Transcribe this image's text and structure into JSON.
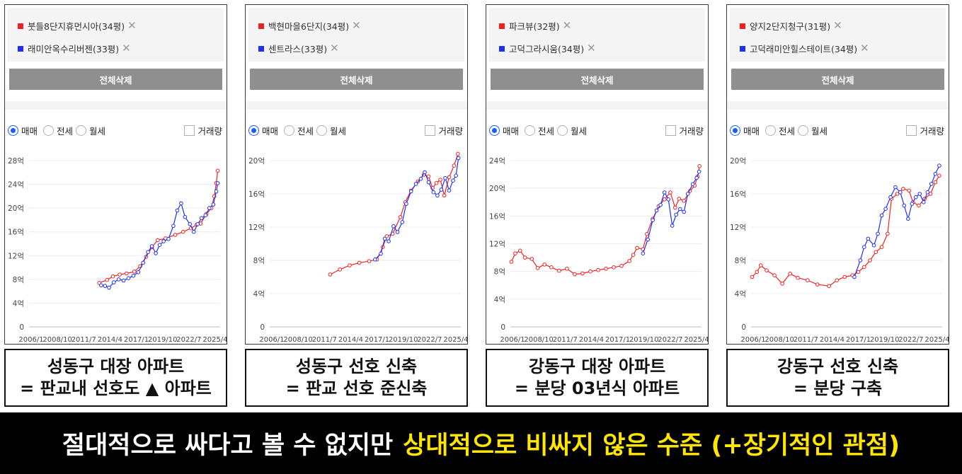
{
  "colors": {
    "red_series": "#f02020",
    "blue_series": "#2030f0",
    "accent_radio": "#1a5cff"
  },
  "controls": {
    "clear_all": "전체삭제",
    "trade": "매매",
    "jeonse": "전세",
    "monthly": "월세",
    "volume": "거래량"
  },
  "panels": [
    {
      "items": [
        {
          "label": "붓들8단지휴먼시아(34평)"
        },
        {
          "label": "래미안옥수리버젠(33평)"
        }
      ],
      "caption": {
        "line1": "성동구 대장 아파트",
        "line2": "= 판교내 선호도 ▲ 아파트"
      }
    },
    {
      "items": [
        {
          "label": "백현마을6단지(34평)"
        },
        {
          "label": "센트라스(33평)"
        }
      ],
      "caption": {
        "line1": "성동구 선호 신축",
        "line2": "= 판교 선호 준신축"
      }
    },
    {
      "items": [
        {
          "label": "파크뷰(32평)"
        },
        {
          "label": "고덕그라시움(34평)"
        }
      ],
      "caption": {
        "line1": "강동구 대장 아파트",
        "line2": "= 분당 03년식 아파트"
      }
    },
    {
      "items": [
        {
          "label": "양지2단지청구(31평)"
        },
        {
          "label": "고덕래미안힐스테이트(34평)"
        }
      ],
      "caption": {
        "line1": "강동구 선호 신축",
        "line2": "= 분당 구축"
      }
    }
  ],
  "banner": {
    "white": "절대적으로 싸다고 볼 수 없지만",
    "yellow": "상대적으로 비싸지 않은 수준 (+장기적인 관점)"
  },
  "chart_data": [
    {
      "type": "line",
      "x_ticks": [
        "2006/1",
        "2008/10",
        "2011/7",
        "2014/4",
        "2017/1",
        "2019/10",
        "2022/7",
        "2025/4"
      ],
      "xlim": [
        2006.0,
        2025.6
      ],
      "ylim": [
        0,
        28
      ],
      "y_tick_values": [
        0,
        4,
        8,
        12,
        16,
        20,
        24,
        28
      ],
      "y_tick_labels": [
        "0",
        "4억",
        "8억",
        "12억",
        "16억",
        "20억",
        "24억",
        "28억"
      ],
      "series": [
        {
          "color": "red",
          "points": [
            [
              2013.2,
              7.4
            ],
            [
              2014.0,
              7.9
            ],
            [
              2014.6,
              8.5
            ],
            [
              2015.3,
              8.8
            ],
            [
              2016.0,
              9.0
            ],
            [
              2016.8,
              9.3
            ],
            [
              2017.4,
              10.2
            ],
            [
              2018.0,
              11.8
            ],
            [
              2018.6,
              13.4
            ],
            [
              2019.2,
              14.6
            ],
            [
              2020.0,
              14.9
            ],
            [
              2021.0,
              15.5
            ],
            [
              2021.8,
              16.0
            ],
            [
              2022.6,
              16.6
            ],
            [
              2023.2,
              17.2
            ],
            [
              2023.6,
              17.4
            ],
            [
              2024.2,
              19.0
            ],
            [
              2024.7,
              20.0
            ],
            [
              2025.0,
              22.0
            ],
            [
              2025.2,
              24.2
            ],
            [
              2025.35,
              26.3
            ]
          ]
        },
        {
          "color": "blue",
          "points": [
            [
              2013.4,
              7.0
            ],
            [
              2013.8,
              6.9
            ],
            [
              2014.2,
              6.6
            ],
            [
              2014.7,
              7.5
            ],
            [
              2015.2,
              8.0
            ],
            [
              2015.7,
              7.8
            ],
            [
              2016.2,
              8.2
            ],
            [
              2016.7,
              8.6
            ],
            [
              2017.2,
              9.2
            ],
            [
              2017.7,
              10.8
            ],
            [
              2018.2,
              12.6
            ],
            [
              2018.6,
              13.6
            ],
            [
              2019.0,
              12.4
            ],
            [
              2019.4,
              13.8
            ],
            [
              2019.8,
              14.4
            ],
            [
              2020.3,
              14.8
            ],
            [
              2020.8,
              17.0
            ],
            [
              2021.2,
              19.6
            ],
            [
              2021.6,
              20.8
            ],
            [
              2022.0,
              18.5
            ],
            [
              2022.5,
              17.3
            ],
            [
              2022.9,
              16.0
            ],
            [
              2023.3,
              17.3
            ],
            [
              2023.7,
              18.3
            ],
            [
              2024.1,
              18.8
            ],
            [
              2024.5,
              20.0
            ],
            [
              2024.9,
              20.6
            ],
            [
              2025.2,
              22.8
            ],
            [
              2025.35,
              24.2
            ]
          ]
        }
      ]
    },
    {
      "type": "line",
      "x_ticks": [
        "2006/1",
        "2008/10",
        "2011/7",
        "2014/4",
        "2017/1",
        "2019/10",
        "2022/7",
        "2025/4"
      ],
      "xlim": [
        2006.0,
        2025.6
      ],
      "ylim": [
        0,
        20
      ],
      "y_tick_values": [
        0,
        4,
        8,
        12,
        16,
        20
      ],
      "y_tick_labels": [
        "0",
        "4억",
        "8억",
        "12억",
        "16억",
        "20억"
      ],
      "series": [
        {
          "color": "red",
          "points": [
            [
              2012.2,
              6.3
            ],
            [
              2013.2,
              6.9
            ],
            [
              2014.2,
              7.4
            ],
            [
              2015.2,
              7.7
            ],
            [
              2016.2,
              7.9
            ],
            [
              2017.0,
              8.1
            ],
            [
              2017.6,
              9.6
            ],
            [
              2018.0,
              10.9
            ],
            [
              2018.6,
              11.2
            ],
            [
              2019.4,
              13.2
            ],
            [
              2019.9,
              15.0
            ],
            [
              2020.5,
              16.4
            ],
            [
              2021.2,
              17.5
            ],
            [
              2021.8,
              18.3
            ],
            [
              2022.3,
              18.1
            ],
            [
              2022.7,
              16.7
            ],
            [
              2023.1,
              17.3
            ],
            [
              2023.5,
              17.7
            ],
            [
              2023.9,
              15.8
            ],
            [
              2024.4,
              18.0
            ],
            [
              2024.9,
              19.4
            ],
            [
              2025.3,
              20.8
            ]
          ]
        },
        {
          "color": "blue",
          "points": [
            [
              2016.8,
              8.1
            ],
            [
              2017.4,
              8.8
            ],
            [
              2017.8,
              10.6
            ],
            [
              2018.2,
              10.3
            ],
            [
              2018.7,
              12.1
            ],
            [
              2019.1,
              11.4
            ],
            [
              2019.6,
              12.6
            ],
            [
              2020.0,
              14.8
            ],
            [
              2020.5,
              16.3
            ],
            [
              2021.0,
              17.2
            ],
            [
              2021.5,
              17.8
            ],
            [
              2021.9,
              18.6
            ],
            [
              2022.3,
              17.4
            ],
            [
              2022.8,
              16.2
            ],
            [
              2023.2,
              15.8
            ],
            [
              2023.6,
              16.5
            ],
            [
              2024.0,
              17.9
            ],
            [
              2024.4,
              16.4
            ],
            [
              2024.8,
              17.6
            ],
            [
              2025.1,
              18.2
            ],
            [
              2025.35,
              20.3
            ]
          ]
        }
      ]
    },
    {
      "type": "line",
      "x_ticks": [
        "2006/1",
        "2008/10",
        "2011/7",
        "2014/4",
        "2017/1",
        "2019/10",
        "2022/7",
        "2025/4"
      ],
      "xlim": [
        2006.0,
        2025.6
      ],
      "ylim": [
        0,
        24
      ],
      "y_tick_values": [
        0,
        4,
        8,
        12,
        16,
        20,
        24
      ],
      "y_tick_labels": [
        "0",
        "4억",
        "8억",
        "12억",
        "16억",
        "20억",
        "24억"
      ],
      "series": [
        {
          "color": "red",
          "points": [
            [
              2006.1,
              9.4
            ],
            [
              2006.5,
              10.6
            ],
            [
              2007.0,
              11.0
            ],
            [
              2007.5,
              10.0
            ],
            [
              2008.2,
              9.8
            ],
            [
              2008.8,
              8.5
            ],
            [
              2009.5,
              9.0
            ],
            [
              2010.2,
              8.6
            ],
            [
              2011.0,
              8.1
            ],
            [
              2011.8,
              8.4
            ],
            [
              2012.6,
              7.6
            ],
            [
              2013.4,
              7.7
            ],
            [
              2014.2,
              8.0
            ],
            [
              2015.0,
              8.2
            ],
            [
              2015.8,
              8.4
            ],
            [
              2016.6,
              8.6
            ],
            [
              2017.4,
              8.8
            ],
            [
              2018.2,
              9.5
            ],
            [
              2018.6,
              10.4
            ],
            [
              2019.0,
              11.4
            ],
            [
              2019.6,
              11.2
            ],
            [
              2020.0,
              13.4
            ],
            [
              2020.6,
              15.6
            ],
            [
              2021.2,
              17.4
            ],
            [
              2021.8,
              18.4
            ],
            [
              2022.4,
              19.4
            ],
            [
              2022.9,
              17.2
            ],
            [
              2023.3,
              18.5
            ],
            [
              2023.8,
              18.2
            ],
            [
              2024.4,
              19.6
            ],
            [
              2024.9,
              20.4
            ],
            [
              2025.2,
              21.7
            ],
            [
              2025.4,
              23.2
            ]
          ]
        },
        {
          "color": "blue",
          "points": [
            [
              2019.6,
              10.6
            ],
            [
              2020.1,
              12.6
            ],
            [
              2020.6,
              15.4
            ],
            [
              2021.0,
              16.8
            ],
            [
              2021.4,
              17.6
            ],
            [
              2021.8,
              19.4
            ],
            [
              2022.2,
              18.4
            ],
            [
              2022.6,
              14.6
            ],
            [
              2023.0,
              16.2
            ],
            [
              2023.4,
              17.0
            ],
            [
              2023.8,
              16.6
            ],
            [
              2024.2,
              19.2
            ],
            [
              2024.7,
              20.6
            ],
            [
              2025.1,
              21.5
            ],
            [
              2025.35,
              22.4
            ]
          ]
        }
      ]
    },
    {
      "type": "line",
      "x_ticks": [
        "2006/1",
        "2008/10",
        "2011/7",
        "2014/4",
        "2017/1",
        "2019/10",
        "2022/7",
        "2025/4"
      ],
      "xlim": [
        2006.0,
        2025.6
      ],
      "ylim": [
        0,
        20
      ],
      "y_tick_values": [
        0,
        4,
        8,
        12,
        16,
        20
      ],
      "y_tick_labels": [
        "0",
        "4억",
        "8억",
        "12억",
        "16억",
        "20억"
      ],
      "series": [
        {
          "color": "red",
          "points": [
            [
              2006.1,
              6.0
            ],
            [
              2006.6,
              6.6
            ],
            [
              2007.0,
              7.4
            ],
            [
              2007.6,
              6.8
            ],
            [
              2008.4,
              6.2
            ],
            [
              2009.2,
              5.2
            ],
            [
              2010.0,
              6.4
            ],
            [
              2010.8,
              5.9
            ],
            [
              2011.8,
              5.6
            ],
            [
              2012.8,
              5.1
            ],
            [
              2014.0,
              4.9
            ],
            [
              2014.8,
              5.6
            ],
            [
              2015.6,
              6.0
            ],
            [
              2016.4,
              6.2
            ],
            [
              2017.0,
              6.6
            ],
            [
              2017.6,
              7.2
            ],
            [
              2018.2,
              8.0
            ],
            [
              2018.8,
              9.0
            ],
            [
              2019.4,
              9.6
            ],
            [
              2020.0,
              11.2
            ],
            [
              2020.4,
              15.4
            ],
            [
              2021.0,
              16.0
            ],
            [
              2021.6,
              16.6
            ],
            [
              2022.2,
              16.4
            ],
            [
              2022.6,
              15.0
            ],
            [
              2023.2,
              14.6
            ],
            [
              2023.8,
              15.4
            ],
            [
              2024.4,
              16.0
            ],
            [
              2024.9,
              17.4
            ],
            [
              2025.3,
              18.2
            ]
          ]
        },
        {
          "color": "blue",
          "points": [
            [
              2016.6,
              6.0
            ],
            [
              2017.2,
              8.0
            ],
            [
              2017.6,
              9.6
            ],
            [
              2018.0,
              10.6
            ],
            [
              2018.6,
              9.8
            ],
            [
              2019.0,
              11.2
            ],
            [
              2019.4,
              13.4
            ],
            [
              2019.8,
              14.2
            ],
            [
              2020.3,
              15.6
            ],
            [
              2020.8,
              16.8
            ],
            [
              2021.3,
              16.2
            ],
            [
              2021.7,
              14.6
            ],
            [
              2022.1,
              13.0
            ],
            [
              2022.5,
              14.8
            ],
            [
              2022.9,
              15.6
            ],
            [
              2023.3,
              16.0
            ],
            [
              2023.7,
              15.0
            ],
            [
              2024.1,
              16.2
            ],
            [
              2024.5,
              17.2
            ],
            [
              2024.9,
              18.4
            ],
            [
              2025.3,
              19.4
            ]
          ]
        }
      ]
    }
  ]
}
